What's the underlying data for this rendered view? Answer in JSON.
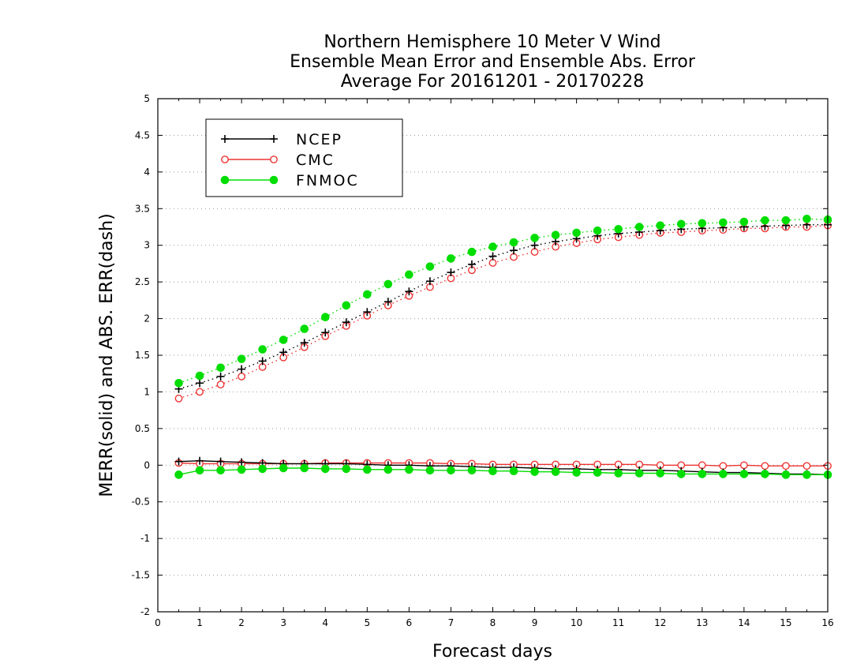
{
  "chart_data": {
    "type": "line",
    "title": [
      "Northern Hemisphere 10 Meter V Wind",
      "Ensemble Mean Error and Ensemble Abs. Error",
      "Average For 20161201 - 20170228"
    ],
    "xlabel": "Forecast days",
    "ylabel": "MERR(solid) and ABS. ERR(dash)",
    "xlim": [
      0,
      16
    ],
    "ylim": [
      -2,
      5
    ],
    "xticks": [
      0,
      1,
      2,
      3,
      4,
      5,
      6,
      7,
      8,
      9,
      10,
      11,
      12,
      13,
      14,
      15,
      16
    ],
    "yticks": [
      -2,
      -1.5,
      -1,
      -0.5,
      0,
      0.5,
      1,
      1.5,
      2,
      2.5,
      3,
      3.5,
      4,
      4.5,
      5
    ],
    "ytick_labels": [
      "-2",
      "-1.5",
      "-1",
      "-0.5",
      "0",
      "0.5",
      "1",
      "1.5",
      "2",
      "2.5",
      "3",
      "3.5",
      "4",
      "4.5",
      "5"
    ],
    "grid": "horizontal dotted",
    "legend_position": "top-left",
    "x": [
      0.5,
      1,
      1.5,
      2,
      2.5,
      3,
      3.5,
      4,
      4.5,
      5,
      5.5,
      6,
      6.5,
      7,
      7.5,
      8,
      8.5,
      9,
      9.5,
      10,
      10.5,
      11,
      11.5,
      12,
      12.5,
      13,
      13.5,
      14,
      14.5,
      15,
      15.5,
      16
    ],
    "series": [
      {
        "name": "NCEP",
        "color": "#000000",
        "marker": "plus",
        "abs_err": [
          1.04,
          1.12,
          1.21,
          1.31,
          1.42,
          1.54,
          1.67,
          1.81,
          1.95,
          2.09,
          2.23,
          2.37,
          2.51,
          2.63,
          2.74,
          2.85,
          2.93,
          3.0,
          3.05,
          3.09,
          3.13,
          3.16,
          3.18,
          3.2,
          3.22,
          3.23,
          3.24,
          3.25,
          3.26,
          3.27,
          3.28,
          3.28
        ],
        "mean_err": [
          0.05,
          0.06,
          0.05,
          0.04,
          0.03,
          0.02,
          0.02,
          0.02,
          0.02,
          0.01,
          0.0,
          0.0,
          -0.01,
          -0.01,
          -0.02,
          -0.03,
          -0.03,
          -0.04,
          -0.05,
          -0.05,
          -0.06,
          -0.06,
          -0.07,
          -0.07,
          -0.08,
          -0.09,
          -0.1,
          -0.1,
          -0.11,
          -0.12,
          -0.12,
          -0.13
        ]
      },
      {
        "name": "CMC",
        "color": "#ee3333",
        "marker": "open-circle",
        "abs_err": [
          0.91,
          1.0,
          1.1,
          1.21,
          1.34,
          1.47,
          1.61,
          1.76,
          1.9,
          2.04,
          2.18,
          2.31,
          2.43,
          2.55,
          2.66,
          2.76,
          2.84,
          2.91,
          2.98,
          3.03,
          3.08,
          3.11,
          3.14,
          3.17,
          3.18,
          3.2,
          3.21,
          3.23,
          3.23,
          3.25,
          3.25,
          3.27
        ],
        "mean_err": [
          0.03,
          0.02,
          0.02,
          0.02,
          0.02,
          0.02,
          0.02,
          0.03,
          0.03,
          0.03,
          0.03,
          0.03,
          0.03,
          0.02,
          0.02,
          0.01,
          0.01,
          0.01,
          0.01,
          0.01,
          0.01,
          0.01,
          0.01,
          0.0,
          0.0,
          0.0,
          -0.01,
          0.0,
          -0.01,
          -0.01,
          -0.01,
          -0.01
        ]
      },
      {
        "name": "FNMOC",
        "color": "#00dd00",
        "marker": "filled-circle",
        "abs_err": [
          1.12,
          1.22,
          1.33,
          1.45,
          1.58,
          1.71,
          1.86,
          2.02,
          2.18,
          2.33,
          2.47,
          2.6,
          2.71,
          2.82,
          2.91,
          2.98,
          3.04,
          3.1,
          3.14,
          3.17,
          3.2,
          3.22,
          3.25,
          3.27,
          3.29,
          3.3,
          3.31,
          3.32,
          3.34,
          3.34,
          3.36,
          3.35
        ],
        "mean_err": [
          -0.13,
          -0.07,
          -0.07,
          -0.06,
          -0.05,
          -0.04,
          -0.04,
          -0.05,
          -0.05,
          -0.06,
          -0.06,
          -0.06,
          -0.07,
          -0.07,
          -0.07,
          -0.08,
          -0.08,
          -0.09,
          -0.09,
          -0.1,
          -0.1,
          -0.11,
          -0.11,
          -0.11,
          -0.12,
          -0.12,
          -0.12,
          -0.12,
          -0.12,
          -0.13,
          -0.13,
          -0.13
        ]
      }
    ]
  }
}
